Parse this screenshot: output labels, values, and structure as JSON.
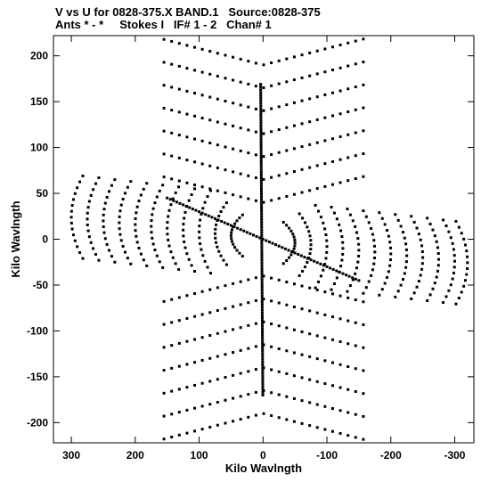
{
  "title": "V vs U for 0828-375.X BAND.1   Source:0828-375",
  "subtitle": "Ants * - *     Stokes I   IF# 1 - 2   Chan# 1",
  "chart_data": {
    "type": "scatter",
    "xlabel": "Kilo Wavlngth",
    "ylabel": "Kilo Wavlngth",
    "xlim": [
      328,
      -330
    ],
    "ylim": [
      -222,
      222
    ],
    "x_ticks": [
      300,
      200,
      100,
      0,
      -100,
      -200,
      -300
    ],
    "y_ticks": [
      200,
      150,
      100,
      50,
      0,
      -50,
      -100,
      -150,
      -200
    ],
    "x_tick_labels": [
      "300",
      "200",
      "100",
      "0",
      "-100",
      "-200",
      "-300"
    ],
    "y_tick_labels": [
      "200",
      "150",
      "100",
      "50",
      "0",
      "-50",
      "-100",
      "-150",
      "-200"
    ],
    "grid": false,
    "marker_color": "#000000",
    "series": [
      {
        "description": "uv-coverage tracks",
        "tracks": {
          "radial_angles_deg": [
            90,
            270
          ],
          "radial_max": 170,
          "arc_levels_v": [
            -200,
            -175,
            -150,
            -125,
            -100,
            -75,
            -50,
            50,
            75,
            100,
            125,
            150,
            175,
            200
          ],
          "arc_u_start": 155,
          "arc_u_end": -165,
          "horizontal_arcs_u": [
            300,
            275,
            250,
            225,
            200,
            175,
            150,
            125,
            100,
            75,
            50,
            -50,
            -75,
            -100,
            -125,
            -150,
            -175,
            -200,
            -225,
            -250,
            -275,
            -300,
            -320
          ],
          "horizontal_arc_halfwidth_v": 45,
          "diagonal_arm": {
            "u_start": 150,
            "v_start": 45,
            "u_end": -150,
            "v_end": -45
          }
        }
      }
    ]
  }
}
